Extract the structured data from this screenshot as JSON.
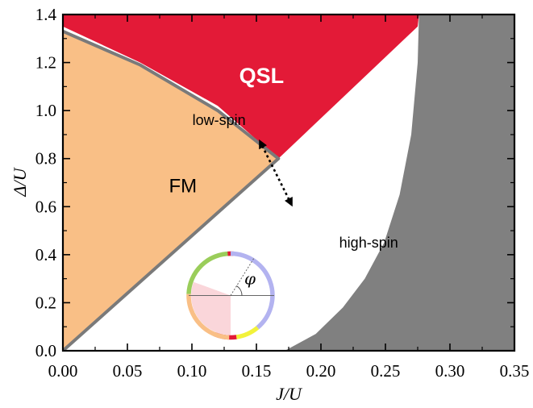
{
  "chart_data": {
    "type": "area",
    "xlabel": "J/U",
    "ylabel": "Δ/U",
    "xlim": [
      0,
      0.35
    ],
    "ylim": [
      0,
      1.4
    ],
    "x_ticks": [
      "0.00",
      "0.05",
      "0.10",
      "0.15",
      "0.20",
      "0.25",
      "0.30",
      "0.35"
    ],
    "y_ticks": [
      "0.0",
      "0.2",
      "0.4",
      "0.6",
      "0.8",
      "1.0",
      "1.2",
      "1.4"
    ],
    "grid": false,
    "regions": [
      {
        "label": "FM",
        "color": "#F9BF86",
        "boundary": [
          [
            0,
            0
          ],
          [
            0.167,
            0.8
          ],
          [
            0.12,
            1.0
          ],
          [
            0.06,
            1.19
          ],
          [
            0,
            1.33
          ]
        ]
      },
      {
        "label": "QSL",
        "color": "#E31A37",
        "boundary": [
          [
            0,
            1.35
          ],
          [
            0.06,
            1.2
          ],
          [
            0.12,
            1.02
          ],
          [
            0.167,
            0.8
          ],
          [
            0.275,
            1.35
          ],
          [
            0.276,
            1.4
          ],
          [
            0,
            1.4
          ]
        ]
      },
      {
        "label": "",
        "color": "#808080",
        "boundary": [
          [
            0.172,
            0
          ],
          [
            0.196,
            0.07
          ],
          [
            0.217,
            0.18
          ],
          [
            0.234,
            0.3
          ],
          [
            0.249,
            0.45
          ],
          [
            0.261,
            0.65
          ],
          [
            0.27,
            0.9
          ],
          [
            0.275,
            1.2
          ],
          [
            0.276,
            1.4
          ],
          [
            0.35,
            1.4
          ],
          [
            0.35,
            0
          ]
        ]
      }
    ],
    "annotations": [
      {
        "text": "low-spin",
        "x": 0.121,
        "y": 0.94
      },
      {
        "text": "high-spin",
        "x": 0.237,
        "y": 0.43
      }
    ],
    "arrow": {
      "from": [
        0.152,
        0.88
      ],
      "to": [
        0.178,
        0.6
      ],
      "style": "dotted",
      "double_headed": true
    },
    "inset": {
      "symbol": "φ",
      "center": [
        0.13,
        0.23
      ],
      "ring_colors": [
        "#9ACD5A",
        "#E31A37",
        "#B3B3F0",
        "#F2F23A",
        "#E31A37",
        "#F9BF86"
      ]
    }
  }
}
